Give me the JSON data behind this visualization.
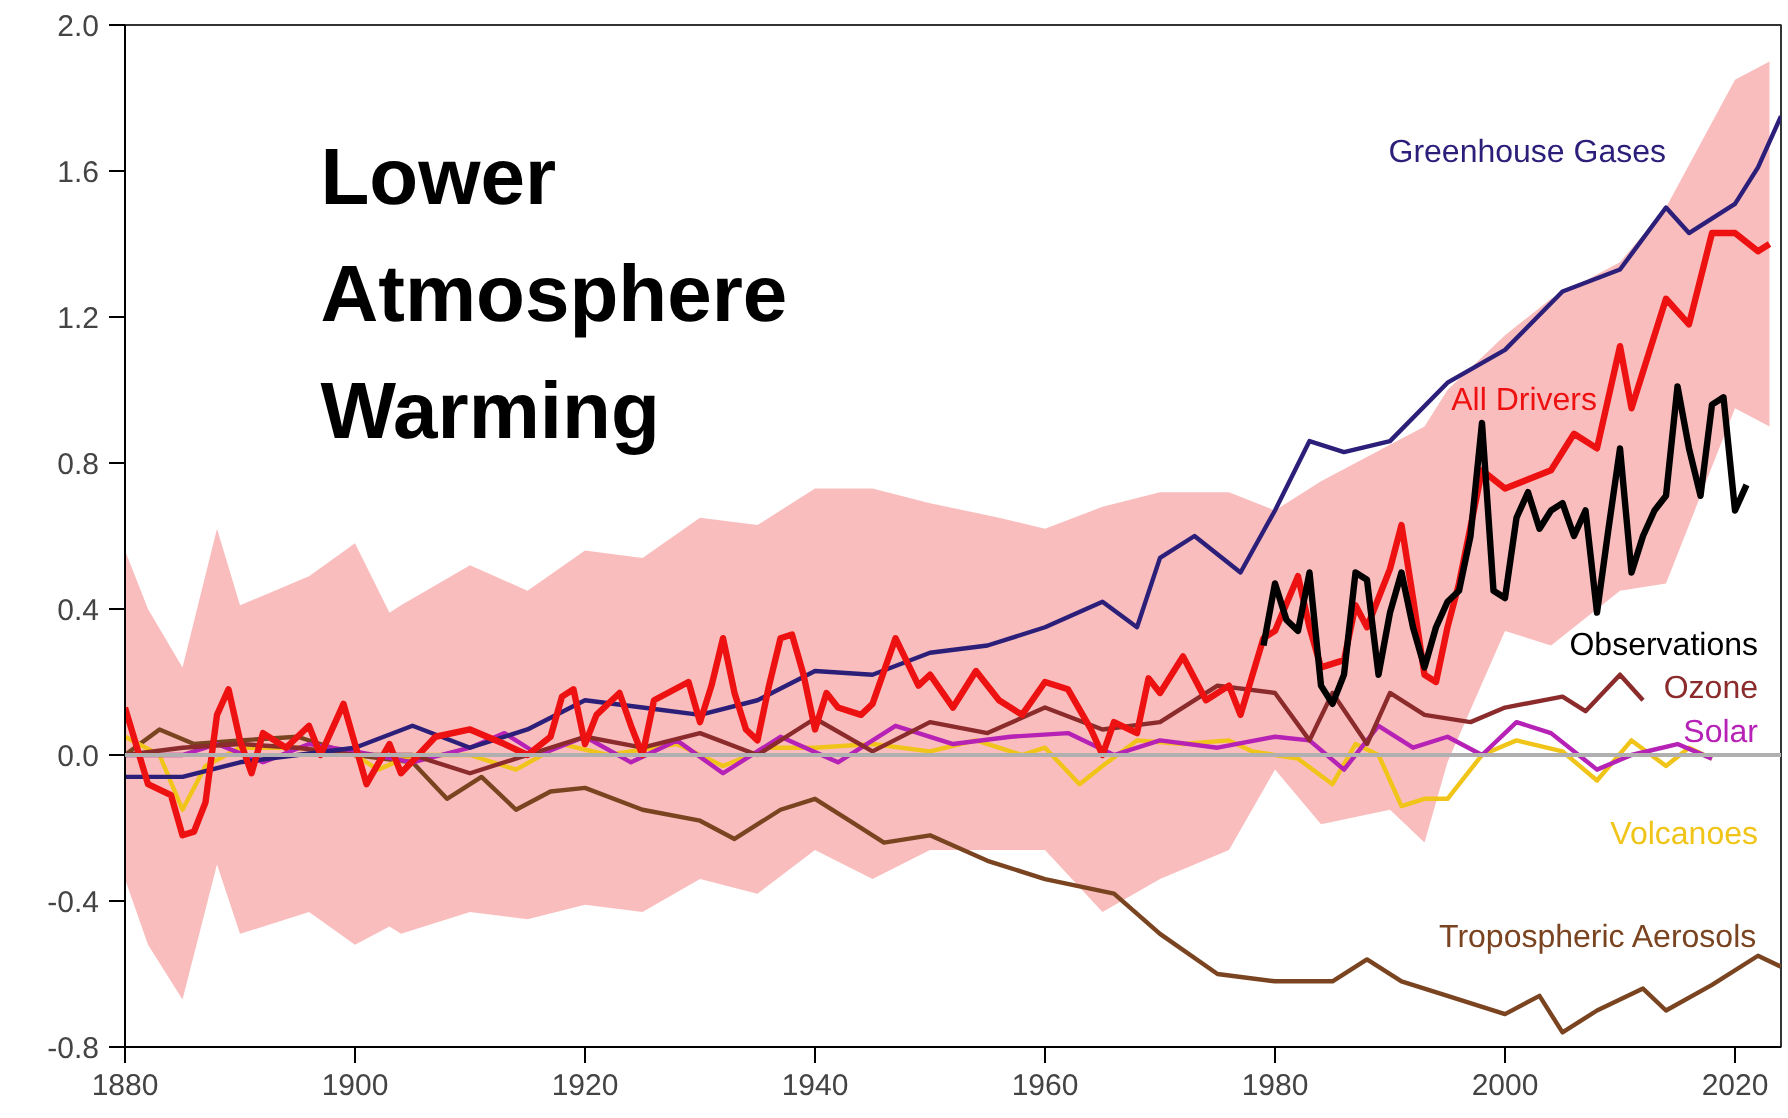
{
  "chart_data": {
    "type": "line",
    "title": "Lower Atmosphere Warming",
    "xlim": [
      1880,
      2024
    ],
    "ylim": [
      -0.8,
      2.0
    ],
    "xticks": [
      1880,
      1900,
      1920,
      1940,
      1960,
      1980,
      2000,
      2020
    ],
    "yticks": [
      {
        "value": -0.8,
        "label": "-0.8"
      },
      {
        "value": -0.4,
        "label": "-0.4"
      },
      {
        "value": 0,
        "label": "0.0"
      },
      {
        "value": 0.4,
        "label": "0.4"
      },
      {
        "value": 0.8,
        "label": "0.8"
      },
      {
        "value": 1.2,
        "label": "1.2"
      },
      {
        "value": 1.6,
        "label": "1.6"
      },
      {
        "value": 2.0,
        "label": "2.0"
      }
    ],
    "grid": false,
    "ref_lines": [
      {
        "axis": "y",
        "value": 0,
        "color": "#b0b0b0"
      }
    ],
    "series": [
      {
        "name": "Tropospheric Aerosols",
        "color": "#7a4421",
        "x": [
          1880,
          1883,
          1886,
          1890,
          1895,
          1900,
          1905,
          1908,
          1911,
          1914,
          1917,
          1920,
          1925,
          1930,
          1933,
          1937,
          1940,
          1943,
          1946,
          1950,
          1955,
          1960,
          1963,
          1966,
          1970,
          1975,
          1980,
          1985,
          1988,
          1991,
          1995,
          2000,
          2003,
          2005,
          2008,
          2012,
          2014,
          2018,
          2022,
          2024
        ],
        "values": [
          0.0,
          0.07,
          0.03,
          0.04,
          0.05,
          0.0,
          -0.02,
          -0.12,
          -0.06,
          -0.15,
          -0.1,
          -0.09,
          -0.15,
          -0.18,
          -0.23,
          -0.15,
          -0.12,
          -0.18,
          -0.24,
          -0.22,
          -0.29,
          -0.34,
          -0.36,
          -0.38,
          -0.49,
          -0.6,
          -0.62,
          -0.62,
          -0.56,
          -0.62,
          -0.66,
          -0.71,
          -0.66,
          -0.76,
          -0.7,
          -0.64,
          -0.7,
          -0.63,
          -0.55,
          -0.58
        ]
      },
      {
        "name": "Volcanoes",
        "color": "#f0c419",
        "x": [
          1880,
          1883,
          1885,
          1887,
          1890,
          1895,
          1900,
          1902,
          1905,
          1910,
          1914,
          1918,
          1922,
          1928,
          1932,
          1936,
          1940,
          1945,
          1950,
          1954,
          1958,
          1960,
          1963,
          1965,
          1968,
          1972,
          1976,
          1978,
          1982,
          1985,
          1987,
          1989,
          1991,
          1993,
          1995,
          1998,
          2001,
          2005,
          2008,
          2011,
          2014,
          2016,
          2018
        ],
        "values": [
          0.05,
          0.0,
          -0.15,
          -0.03,
          0.02,
          0.02,
          0.0,
          -0.04,
          0.0,
          0.0,
          -0.04,
          0.03,
          0.0,
          0.03,
          -0.03,
          0.02,
          0.02,
          0.03,
          0.01,
          0.04,
          0.0,
          0.02,
          -0.08,
          -0.03,
          0.04,
          0.03,
          0.04,
          0.01,
          -0.01,
          -0.08,
          0.03,
          0.0,
          -0.14,
          -0.12,
          -0.12,
          0.0,
          0.04,
          0.01,
          -0.07,
          0.04,
          -0.03,
          0.02,
          -0.01
        ]
      },
      {
        "name": "Solar",
        "color": "#b522b5",
        "x": [
          1880,
          1885,
          1888,
          1892,
          1896,
          1900,
          1905,
          1910,
          1913,
          1916,
          1920,
          1924,
          1928,
          1932,
          1937,
          1942,
          1947,
          1952,
          1957,
          1962,
          1966,
          1970,
          1975,
          1980,
          1983,
          1986,
          1989,
          1992,
          1995,
          1998,
          2001,
          2004,
          2008,
          2011,
          2015,
          2018
        ],
        "values": [
          0.0,
          0.0,
          0.03,
          -0.02,
          0.03,
          0.01,
          -0.02,
          0.02,
          0.06,
          0.0,
          0.05,
          -0.02,
          0.04,
          -0.05,
          0.05,
          -0.02,
          0.08,
          0.03,
          0.05,
          0.06,
          0.0,
          0.04,
          0.02,
          0.05,
          0.04,
          -0.04,
          0.08,
          0.02,
          0.05,
          0.0,
          0.09,
          0.06,
          -0.04,
          0.0,
          0.03,
          -0.01
        ]
      },
      {
        "name": "Ozone",
        "color": "#8b2b2b",
        "x": [
          1880,
          1885,
          1890,
          1895,
          1900,
          1905,
          1910,
          1915,
          1920,
          1925,
          1930,
          1935,
          1940,
          1945,
          1950,
          1955,
          1960,
          1965,
          1970,
          1975,
          1980,
          1983,
          1985,
          1988,
          1990,
          1993,
          1997,
          2000,
          2005,
          2007,
          2010,
          2012
        ],
        "values": [
          0.0,
          0.02,
          0.03,
          0.02,
          0.0,
          0.0,
          -0.05,
          0.0,
          0.05,
          0.02,
          0.06,
          0.0,
          0.1,
          0.01,
          0.09,
          0.06,
          0.13,
          0.07,
          0.09,
          0.19,
          0.17,
          0.04,
          0.17,
          0.03,
          0.17,
          0.11,
          0.09,
          0.13,
          0.16,
          0.12,
          0.22,
          0.15
        ]
      },
      {
        "name": "Greenhouse Gases",
        "color": "#2b1f7a",
        "x": [
          1880,
          1885,
          1890,
          1895,
          1900,
          1905,
          1910,
          1915,
          1920,
          1925,
          1930,
          1935,
          1940,
          1945,
          1950,
          1955,
          1960,
          1965,
          1968,
          1970,
          1973,
          1977,
          1980,
          1983,
          1986,
          1990,
          1995,
          2000,
          2005,
          2010,
          2014,
          2016,
          2020,
          2022,
          2024
        ],
        "values": [
          -0.06,
          -0.06,
          -0.02,
          0.0,
          0.02,
          0.08,
          0.02,
          0.07,
          0.15,
          0.13,
          0.11,
          0.15,
          0.23,
          0.22,
          0.28,
          0.3,
          0.35,
          0.42,
          0.35,
          0.54,
          0.6,
          0.5,
          0.67,
          0.86,
          0.83,
          0.86,
          1.02,
          1.11,
          1.27,
          1.33,
          1.5,
          1.43,
          1.51,
          1.61,
          1.75
        ]
      },
      {
        "name": "All Drivers",
        "color": "#ee1111",
        "x": [
          1880,
          1882,
          1884,
          1885,
          1886,
          1887,
          1888,
          1889,
          1890,
          1891,
          1892,
          1894,
          1896,
          1897,
          1899,
          1900,
          1901,
          1903,
          1904,
          1907,
          1910,
          1913,
          1915,
          1917,
          1918,
          1919,
          1920,
          1921,
          1923,
          1924,
          1925,
          1926,
          1929,
          1930,
          1931,
          1932,
          1933,
          1934,
          1935,
          1936,
          1937,
          1938,
          1939,
          1940,
          1941,
          1942,
          1944,
          1945,
          1947,
          1949,
          1950,
          1952,
          1954,
          1956,
          1958,
          1960,
          1962,
          1964,
          1965,
          1966,
          1968,
          1969,
          1970,
          1972,
          1974,
          1976,
          1977,
          1979,
          1980,
          1982,
          1983,
          1984,
          1986,
          1987,
          1988,
          1990,
          1991,
          1992,
          1993,
          1994,
          1995,
          1996,
          1998,
          2000,
          2004,
          2006,
          2008,
          2010,
          2011,
          2014,
          2016,
          2018,
          2020,
          2022,
          2023
        ],
        "values": [
          0.13,
          -0.08,
          -0.11,
          -0.22,
          -0.21,
          -0.13,
          0.11,
          0.18,
          0.04,
          -0.05,
          0.06,
          0.02,
          0.08,
          0.0,
          0.14,
          0.03,
          -0.08,
          0.03,
          -0.05,
          0.05,
          0.07,
          0.03,
          0.0,
          0.05,
          0.16,
          0.18,
          0.03,
          0.11,
          0.17,
          0.08,
          0.0,
          0.15,
          0.2,
          0.09,
          0.19,
          0.32,
          0.17,
          0.07,
          0.04,
          0.19,
          0.32,
          0.33,
          0.22,
          0.07,
          0.17,
          0.13,
          0.11,
          0.14,
          0.32,
          0.19,
          0.22,
          0.13,
          0.23,
          0.15,
          0.11,
          0.2,
          0.18,
          0.07,
          0.0,
          0.09,
          0.06,
          0.21,
          0.17,
          0.27,
          0.15,
          0.19,
          0.11,
          0.32,
          0.34,
          0.49,
          0.35,
          0.24,
          0.26,
          0.41,
          0.35,
          0.51,
          0.63,
          0.43,
          0.22,
          0.2,
          0.35,
          0.47,
          0.78,
          0.73,
          0.78,
          0.88,
          0.84,
          1.12,
          0.95,
          1.25,
          1.18,
          1.43,
          1.43,
          1.38,
          1.4
        ],
        "lower": [
          -0.34,
          -0.52,
          null,
          -0.67,
          null,
          null,
          -0.3,
          null,
          -0.49,
          null,
          null,
          null,
          -0.43,
          null,
          null,
          -0.52,
          null,
          -0.47,
          -0.49,
          null,
          -0.43,
          null,
          -0.45,
          null,
          null,
          null,
          -0.41,
          null,
          null,
          null,
          -0.43,
          null,
          null,
          -0.34,
          null,
          null,
          null,
          null,
          -0.38,
          null,
          null,
          null,
          null,
          -0.26,
          null,
          null,
          null,
          -0.34,
          null,
          null,
          -0.26,
          null,
          null,
          -0.26,
          null,
          -0.26,
          null,
          null,
          -0.43,
          null,
          null,
          null,
          -0.34,
          null,
          null,
          -0.26,
          null,
          null,
          -0.04,
          null,
          null,
          -0.19,
          null,
          null,
          null,
          -0.15,
          null,
          null,
          -0.24,
          null,
          -0.02,
          null,
          null,
          0.34,
          0.3,
          null,
          null,
          0.45,
          null,
          0.47,
          null,
          null,
          0.95,
          null,
          0.9
        ],
        "upper": [
          0.56,
          0.4,
          null,
          0.24,
          null,
          null,
          0.62,
          null,
          0.41,
          null,
          null,
          null,
          0.49,
          null,
          null,
          0.58,
          null,
          0.39,
          0.41,
          null,
          0.52,
          null,
          0.45,
          null,
          null,
          null,
          0.56,
          null,
          null,
          null,
          0.54,
          null,
          null,
          0.65,
          null,
          null,
          null,
          null,
          0.63,
          null,
          null,
          null,
          null,
          0.73,
          null,
          null,
          null,
          0.73,
          null,
          null,
          0.69,
          null,
          null,
          0.65,
          null,
          0.62,
          null,
          null,
          0.68,
          null,
          null,
          null,
          0.72,
          null,
          null,
          0.72,
          null,
          null,
          0.67,
          null,
          null,
          0.75,
          null,
          null,
          null,
          0.85,
          null,
          null,
          0.9,
          null,
          1.0,
          null,
          null,
          1.15,
          1.25,
          null,
          null,
          1.35,
          null,
          1.5,
          null,
          null,
          1.85,
          null,
          1.9
        ]
      },
      {
        "name": "Observations",
        "color": "#000000",
        "x": [
          1979,
          1980,
          1981,
          1982,
          1983,
          1984,
          1985,
          1986,
          1987,
          1988,
          1989,
          1990,
          1991,
          1992,
          1993,
          1994,
          1995,
          1996,
          1997,
          1998,
          1999,
          2000,
          2001,
          2002,
          2003,
          2004,
          2005,
          2006,
          2007,
          2008,
          2009,
          2010,
          2011,
          2012,
          2013,
          2014,
          2015,
          2016,
          2017,
          2018,
          2019,
          2020,
          2021
        ],
        "values": [
          0.3,
          0.47,
          0.37,
          0.34,
          0.5,
          0.19,
          0.14,
          0.22,
          0.5,
          0.48,
          0.22,
          0.39,
          0.5,
          0.35,
          0.24,
          0.35,
          0.42,
          0.45,
          0.6,
          0.91,
          0.45,
          0.43,
          0.65,
          0.72,
          0.62,
          0.67,
          0.69,
          0.6,
          0.67,
          0.39,
          0.62,
          0.84,
          0.5,
          0.6,
          0.67,
          0.71,
          1.01,
          0.84,
          0.71,
          0.96,
          0.98,
          0.67,
          0.74
        ]
      }
    ]
  }
}
